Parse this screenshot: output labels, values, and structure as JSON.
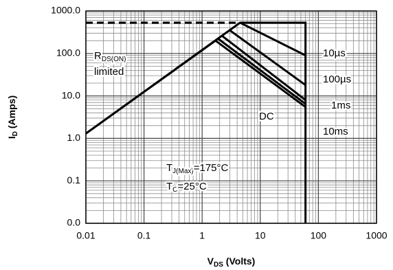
{
  "chart_data": {
    "type": "line",
    "x_label": [
      "V",
      "DS",
      " (Volts)"
    ],
    "y_label": [
      "I",
      "D",
      " (Amps)"
    ],
    "xscale": "log",
    "yscale": "log",
    "grid": true,
    "minor_grid": true,
    "xlim": [
      0.01,
      1000
    ],
    "ylim": [
      0.01,
      1000
    ],
    "xticks": [
      0.01,
      0.1,
      1,
      10,
      100,
      1000
    ],
    "yticks": [
      {
        "value": 1000,
        "label": "1000.0"
      },
      {
        "value": 100,
        "label": "100.0"
      },
      {
        "value": 10,
        "label": "10.0"
      },
      {
        "value": 1,
        "label": "1.0"
      },
      {
        "value": 0.1,
        "label": "0.1"
      },
      {
        "value": 0.01,
        "label": "0.0"
      }
    ],
    "series": [
      {
        "color": "#000000",
        "dashed": true,
        "x": [
          0.01,
          4.5
        ],
        "values": [
          530,
          530
        ]
      },
      {
        "color": "#000000",
        "x": [
          0.01,
          4.5,
          60,
          60
        ],
        "values": [
          1.3,
          530,
          530,
          0.01
        ]
      },
      {
        "color": "#000000",
        "x": [
          4.5,
          60
        ],
        "values": [
          530,
          90
        ]
      },
      {
        "color": "#000000",
        "x": [
          3,
          60
        ],
        "values": [
          350,
          18
        ]
      },
      {
        "color": "#000000",
        "x": [
          2.2,
          60
        ],
        "values": [
          260,
          8
        ]
      },
      {
        "color": "#000000",
        "x": [
          1.9,
          60
        ],
        "values": [
          220,
          6.5
        ]
      },
      {
        "color": "#000000",
        "x": [
          0.01,
          1.7,
          60
        ],
        "values": [
          1.3,
          200,
          5.5
        ]
      }
    ],
    "annotations": [
      {
        "parts": [
          "R",
          "DS(ON)"
        ]
      },
      {
        "parts": [
          "limited"
        ]
      },
      {
        "parts": [
          "10µs"
        ]
      },
      {
        "parts": [
          "100µs"
        ]
      },
      {
        "parts": [
          "1ms"
        ]
      },
      {
        "parts": [
          "10ms"
        ]
      },
      {
        "parts": [
          "DC"
        ]
      },
      {
        "parts": [
          "T",
          "J(Max)",
          "=175°C"
        ]
      },
      {
        "parts": [
          "T",
          "C",
          "=25°C"
        ]
      }
    ]
  }
}
